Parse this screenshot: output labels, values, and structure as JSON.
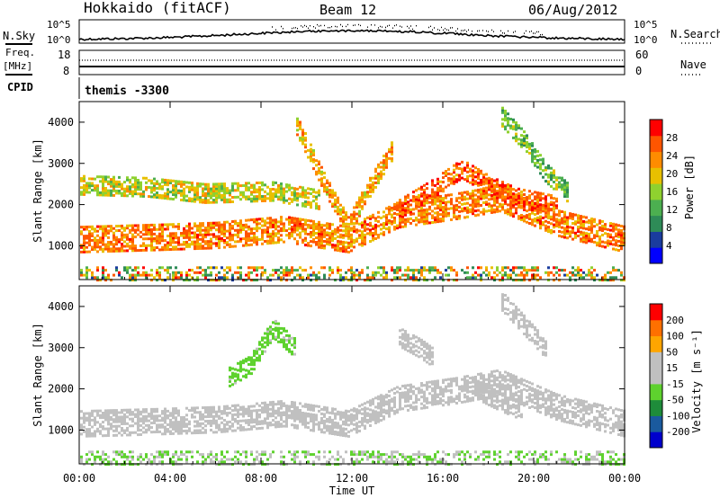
{
  "header": {
    "station": "Hokkaido (fitACF)",
    "beam": "Beam 12",
    "date": "06/Aug/2012"
  },
  "top_panels": {
    "nsky_label": "N.Sky",
    "nsearch_label": "N.Search",
    "freq_label": "Freq.",
    "freq_unit": "[MHz]",
    "nave_label": "Nave",
    "cpid_label": "CPID",
    "cpid_value": "themis -3300",
    "noise_ticks": [
      "10^5",
      "10^0"
    ],
    "freq_ticks": [
      "18",
      "8"
    ],
    "nave_ticks": [
      "60",
      "0"
    ]
  },
  "colors": {
    "power_scale": [
      "#0000ff",
      "#1a3c9e",
      "#2e8b57",
      "#4caf50",
      "#8fd12f",
      "#e8c000",
      "#ff8c00",
      "#ff5500",
      "#ff0000"
    ],
    "velocity_scale": [
      "#0000cc",
      "#1a5a9e",
      "#1e8c3a",
      "#5ed22e",
      "#c0c0c0",
      "#c0c0c0",
      "#ffa500",
      "#ff7000",
      "#ff0000"
    ]
  },
  "chart_data": [
    {
      "type": "heatmap",
      "name": "power",
      "ylabel": "Slant Range [km]",
      "xlabel": "",
      "xlim": [
        0,
        24
      ],
      "ylim": [
        180,
        4500
      ],
      "yticks": [
        1000,
        2000,
        3000,
        4000
      ],
      "xticks": [
        "00:00",
        "04:00",
        "08:00",
        "12:00",
        "16:00",
        "20:00",
        "00:00"
      ],
      "colorbar_label": "Power [dB]",
      "colorbar_ticks": [
        "28",
        "24",
        "20",
        "16",
        "12",
        "8",
        "4"
      ],
      "colorbar_range": [
        0,
        32
      ],
      "features": [
        {
          "x": [
            0,
            3.2,
            6,
            9,
            11.8,
            14,
            16.5,
            18.5,
            21,
            24
          ],
          "y": [
            1200,
            1250,
            1300,
            1450,
            1200,
            1800,
            2000,
            2200,
            1600,
            1200
          ],
          "level": 24
        },
        {
          "x": [
            0,
            3,
            5.5,
            8.5,
            10.5
          ],
          "y": [
            2500,
            2450,
            2300,
            2350,
            2150
          ],
          "level": 18
        },
        {
          "x": [
            9.5,
            10.8,
            11.8,
            12.8,
            13.8
          ],
          "y": [
            4000,
            2500,
            1500,
            2500,
            3400
          ],
          "level": 22
        },
        {
          "x": [
            14,
            15.5,
            16.8,
            18,
            19.2,
            21
          ],
          "y": [
            1900,
            2400,
            2900,
            2500,
            2200,
            2000
          ],
          "level": 26
        },
        {
          "x": [
            18.5,
            19.5,
            20.5,
            21.5
          ],
          "y": [
            4200,
            3600,
            2800,
            2300
          ],
          "level": 14
        }
      ]
    },
    {
      "type": "heatmap",
      "name": "velocity",
      "ylabel": "Slant Range [km]",
      "xlabel": "Time UT",
      "xlim": [
        0,
        24
      ],
      "ylim": [
        180,
        4500
      ],
      "yticks": [
        1000,
        2000,
        3000,
        4000
      ],
      "xticks": [
        "00:00",
        "04:00",
        "08:00",
        "12:00",
        "16:00",
        "20:00",
        "00:00"
      ],
      "colorbar_label": "Velocity [m s⁻¹]",
      "colorbar_ticks": [
        "200",
        "100",
        "50",
        "15",
        "-15",
        "-50",
        "-100",
        "-200"
      ],
      "colorbar_range": [
        -250,
        250
      ],
      "features": [
        {
          "x": [
            0,
            3.2,
            6,
            9,
            11.8,
            14,
            16.5,
            18.5,
            21,
            24
          ],
          "y": [
            1200,
            1250,
            1300,
            1450,
            1200,
            1800,
            2000,
            2200,
            1600,
            1200
          ],
          "level": 0
        },
        {
          "x": [
            6.5,
            7.5,
            8.5,
            9.5
          ],
          "y": [
            2300,
            2600,
            3500,
            3000
          ],
          "level": -40
        },
        {
          "x": [
            14,
            15,
            15.5
          ],
          "y": [
            3300,
            3000,
            2800
          ],
          "level": 40
        },
        {
          "x": [
            17.5,
            18.2,
            19,
            19.5
          ],
          "y": [
            2000,
            1800,
            1600,
            1500
          ],
          "level": 45
        },
        {
          "x": [
            18.5,
            19.5,
            20.5
          ],
          "y": [
            4200,
            3600,
            3000
          ],
          "level": 30
        }
      ]
    }
  ]
}
